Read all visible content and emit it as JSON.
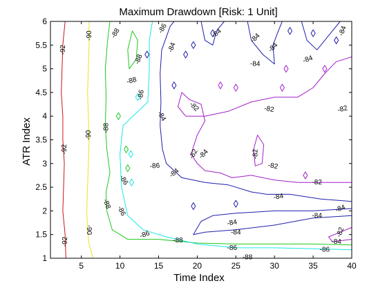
{
  "chart_data": {
    "type": "contour",
    "title": "Maximum Drawdown [Risk: 1 Unit]",
    "xlabel": "Time Index",
    "ylabel": "ATR Index",
    "xlim": [
      1,
      40
    ],
    "ylim": [
      1,
      6
    ],
    "xticks": [
      "5",
      "10",
      "15",
      "20",
      "25",
      "30",
      "35",
      "40"
    ],
    "yticks": [
      "1",
      "1.5",
      "2",
      "2.5",
      "3",
      "3.5",
      "4",
      "4.5",
      "5",
      "5.5",
      "6"
    ],
    "grid": false,
    "legend": "none",
    "levels": [
      {
        "level": -92,
        "color": "#c81414",
        "label": "-92",
        "points": [
          [
            3.0,
            1.0
          ],
          [
            2.9,
            1.5
          ],
          [
            2.6,
            2.0
          ],
          [
            2.7,
            2.5
          ],
          [
            2.8,
            3.0
          ],
          [
            2.6,
            3.5
          ],
          [
            2.6,
            4.0
          ],
          [
            2.4,
            4.5
          ],
          [
            2.5,
            5.0
          ],
          [
            2.6,
            5.5
          ],
          [
            2.9,
            6.0
          ]
        ]
      },
      {
        "level": -90,
        "color": "#e6e61e",
        "label": "-90",
        "points": [
          [
            6.5,
            1.0
          ],
          [
            6.0,
            1.3
          ],
          [
            5.8,
            1.6
          ],
          [
            5.7,
            2.0
          ],
          [
            5.8,
            2.5
          ],
          [
            5.9,
            3.0
          ],
          [
            6.0,
            3.5
          ],
          [
            5.9,
            4.0
          ],
          [
            5.8,
            4.5
          ],
          [
            5.9,
            5.0
          ],
          [
            6.0,
            5.5
          ],
          [
            6.0,
            6.0
          ]
        ]
      },
      {
        "level": -88,
        "color": "#1ec81e",
        "label": "-88",
        "points": [
          [
            40.0,
            1.28
          ],
          [
            35.0,
            1.3
          ],
          [
            30.0,
            1.3
          ],
          [
            25.0,
            1.3
          ],
          [
            20.0,
            1.32
          ],
          [
            15.0,
            1.4
          ],
          [
            11.0,
            1.4
          ],
          [
            9.0,
            1.6
          ],
          [
            8.3,
            2.0
          ],
          [
            8.2,
            2.4
          ],
          [
            8.7,
            2.8
          ],
          [
            8.3,
            3.3
          ],
          [
            8.1,
            3.8
          ],
          [
            8.2,
            4.4
          ],
          [
            8.1,
            5.0
          ],
          [
            8.4,
            5.6
          ],
          [
            8.7,
            6.0
          ]
        ]
      },
      {
        "level": -88,
        "color": "#1ec81e",
        "label": "-88",
        "points": [
          [
            11.2,
            5.0
          ],
          [
            11.0,
            5.4
          ],
          [
            11.6,
            5.8
          ],
          [
            12.3,
            5.6
          ],
          [
            12.1,
            5.2
          ],
          [
            11.2,
            5.0
          ]
        ]
      },
      {
        "level": -86,
        "color": "#19e6e6",
        "label": "-86",
        "points": [
          [
            40.0,
            1.18
          ],
          [
            35.0,
            1.2
          ],
          [
            30.0,
            1.22
          ],
          [
            25.0,
            1.22
          ],
          [
            20.0,
            1.3
          ],
          [
            16.0,
            1.45
          ],
          [
            13.0,
            1.6
          ],
          [
            11.0,
            1.9
          ],
          [
            10.2,
            2.5
          ],
          [
            10.0,
            3.2
          ],
          [
            10.4,
            3.8
          ],
          [
            13.6,
            4.3
          ],
          [
            13.8,
            5.0
          ],
          [
            13.8,
            5.6
          ],
          [
            14.2,
            6.0
          ]
        ]
      },
      {
        "level": -84,
        "color": "#1e1eaa",
        "label": "-84",
        "points": [
          [
            40.0,
            1.9
          ],
          [
            35.0,
            1.85
          ],
          [
            30.0,
            1.7
          ],
          [
            25.0,
            1.6
          ],
          [
            21.0,
            1.55
          ],
          [
            19.5,
            1.5
          ],
          [
            20.5,
            1.78
          ],
          [
            22.0,
            1.9
          ],
          [
            25.0,
            1.95
          ],
          [
            30.0,
            2.0
          ],
          [
            35.0,
            2.0
          ],
          [
            40.0,
            2.05
          ]
        ]
      },
      {
        "level": -84,
        "color": "#1e1eaa",
        "label": "-84",
        "points": [
          [
            40.0,
            2.2
          ],
          [
            36.0,
            2.25
          ],
          [
            32.0,
            2.35
          ],
          [
            29.0,
            2.35
          ],
          [
            27.0,
            2.4
          ],
          [
            24.0,
            2.55
          ],
          [
            21.0,
            2.6
          ],
          [
            18.0,
            2.7
          ],
          [
            16.0,
            3.0
          ],
          [
            15.5,
            3.3
          ],
          [
            15.2,
            3.8
          ],
          [
            15.3,
            4.3
          ],
          [
            15.2,
            4.9
          ],
          [
            15.4,
            5.4
          ],
          [
            16.5,
            5.9
          ],
          [
            17.0,
            6.0
          ]
        ]
      },
      {
        "level": -84,
        "color": "#1e1eaa",
        "label": "-84",
        "points": [
          [
            20.5,
            6.0
          ],
          [
            21.0,
            5.6
          ],
          [
            22.0,
            5.5
          ],
          [
            22.5,
            5.8
          ],
          [
            23.5,
            6.0
          ]
        ]
      },
      {
        "level": -84,
        "color": "#1e1eaa",
        "label": "-84",
        "points": [
          [
            26.5,
            6.0
          ],
          [
            27.0,
            5.6
          ],
          [
            28.5,
            5.3
          ],
          [
            30.0,
            5.1
          ],
          [
            29.8,
            5.5
          ],
          [
            30.5,
            5.8
          ],
          [
            31.0,
            6.0
          ]
        ]
      },
      {
        "level": -84,
        "color": "#1e1eaa",
        "label": "-84",
        "points": [
          [
            33.5,
            6.0
          ],
          [
            34.2,
            5.6
          ],
          [
            35.5,
            5.4
          ],
          [
            37.0,
            5.7
          ],
          [
            38.5,
            6.0
          ]
        ]
      },
      {
        "level": -82,
        "color": "#a01ec8",
        "label": "-82",
        "points": [
          [
            40.0,
            5.25
          ],
          [
            38.0,
            5.15
          ],
          [
            36.5,
            4.9
          ],
          [
            35.0,
            4.6
          ],
          [
            33.0,
            4.4
          ],
          [
            30.0,
            4.4
          ],
          [
            27.0,
            4.3
          ],
          [
            24.0,
            4.1
          ],
          [
            21.0,
            4.0
          ],
          [
            18.5,
            4.0
          ],
          [
            17.5,
            4.2
          ],
          [
            18.0,
            4.5
          ],
          [
            19.0,
            4.35
          ],
          [
            20.5,
            4.25
          ],
          [
            21.0,
            3.9
          ],
          [
            20.0,
            3.6
          ],
          [
            19.2,
            3.2
          ],
          [
            20.0,
            3.0
          ],
          [
            21.0,
            2.85
          ],
          [
            23.0,
            2.8
          ],
          [
            24.5,
            2.7
          ],
          [
            27.0,
            2.75
          ],
          [
            30.0,
            2.65
          ],
          [
            33.0,
            2.6
          ],
          [
            36.0,
            2.6
          ],
          [
            40.0,
            2.6
          ]
        ]
      },
      {
        "level": -82,
        "color": "#a01ec8",
        "label": "-82",
        "points": [
          [
            40.0,
            1.65
          ],
          [
            38.5,
            1.55
          ],
          [
            37.0,
            1.45
          ],
          [
            37.5,
            1.35
          ],
          [
            40.0,
            1.4
          ]
        ]
      },
      {
        "level": -82,
        "color": "#a01ec8",
        "label": "-82",
        "points": [
          [
            27.5,
            2.95
          ],
          [
            27.3,
            3.3
          ],
          [
            27.8,
            3.6
          ],
          [
            28.6,
            3.4
          ],
          [
            28.4,
            3.0
          ],
          [
            27.5,
            2.95
          ]
        ]
      }
    ],
    "contour_labels": [
      {
        "text": "-92",
        "x": 2.6,
        "y": 5.4,
        "rotate": -90
      },
      {
        "text": "-92",
        "x": 2.8,
        "y": 3.3,
        "rotate": -90
      },
      {
        "text": "-92",
        "x": 2.9,
        "y": 1.35,
        "rotate": -90
      },
      {
        "text": "-90",
        "x": 6.0,
        "y": 5.7,
        "rotate": -90
      },
      {
        "text": "-90",
        "x": 5.9,
        "y": 3.6,
        "rotate": -90
      },
      {
        "text": "-90",
        "x": 6.0,
        "y": 1.6,
        "rotate": 90
      },
      {
        "text": "-88",
        "x": 9.4,
        "y": 5.75,
        "rotate": -60
      },
      {
        "text": "-88",
        "x": 8.2,
        "y": 3.75,
        "rotate": -90
      },
      {
        "text": "-88",
        "x": 8.3,
        "y": 2.15,
        "rotate": 70
      },
      {
        "text": "-88",
        "x": 12.4,
        "y": 5.2,
        "rotate": -70
      },
      {
        "text": "-88",
        "x": 11.5,
        "y": 4.75,
        "rotate": -15
      },
      {
        "text": "-88",
        "x": 17.5,
        "y": 1.38,
        "rotate": 0
      },
      {
        "text": "-88",
        "x": 26.5,
        "y": 1.02,
        "rotate": 0
      },
      {
        "text": "-86",
        "x": 15.5,
        "y": 5.85,
        "rotate": -60
      },
      {
        "text": "-86",
        "x": 12.7,
        "y": 4.45,
        "rotate": -80
      },
      {
        "text": "-86",
        "x": 14.5,
        "y": 2.95,
        "rotate": -5
      },
      {
        "text": "-86",
        "x": 10.5,
        "y": 2.65,
        "rotate": 60
      },
      {
        "text": "-86",
        "x": 10.2,
        "y": 2.0,
        "rotate": 65
      },
      {
        "text": "-86",
        "x": 13.2,
        "y": 1.5,
        "rotate": -20
      },
      {
        "text": "-86",
        "x": 24.5,
        "y": 1.22,
        "rotate": 0
      },
      {
        "text": "-86",
        "x": 36.5,
        "y": 1.18,
        "rotate": 0
      },
      {
        "text": "-84",
        "x": 16.7,
        "y": 5.45,
        "rotate": -70
      },
      {
        "text": "-84",
        "x": 22.5,
        "y": 5.75,
        "rotate": -40
      },
      {
        "text": "-84",
        "x": 27.5,
        "y": 5.65,
        "rotate": -45
      },
      {
        "text": "-84",
        "x": 29.8,
        "y": 5.45,
        "rotate": -45
      },
      {
        "text": "-84",
        "x": 27.5,
        "y": 5.1,
        "rotate": 0
      },
      {
        "text": "-84",
        "x": 34.3,
        "y": 5.2,
        "rotate": -20
      },
      {
        "text": "-84",
        "x": 38.8,
        "y": 5.8,
        "rotate": -70
      },
      {
        "text": "-84",
        "x": 15.4,
        "y": 4.0,
        "rotate": 60
      },
      {
        "text": "-84",
        "x": 17.0,
        "y": 2.8,
        "rotate": -40
      },
      {
        "text": "-84",
        "x": 20.8,
        "y": 3.2,
        "rotate": -45
      },
      {
        "text": "-84",
        "x": 24.5,
        "y": 1.75,
        "rotate": -10
      },
      {
        "text": "-84",
        "x": 25.0,
        "y": 1.55,
        "rotate": 0
      },
      {
        "text": "-84",
        "x": 30.5,
        "y": 2.3,
        "rotate": -10
      },
      {
        "text": "-84",
        "x": 35.5,
        "y": 1.9,
        "rotate": 0
      },
      {
        "text": "-84",
        "x": 38.5,
        "y": 2.05,
        "rotate": -20
      },
      {
        "text": "-84",
        "x": 38.0,
        "y": 1.35,
        "rotate": 0
      },
      {
        "text": "-82",
        "x": 19.6,
        "y": 4.2,
        "rotate": 45
      },
      {
        "text": "-82",
        "x": 29.3,
        "y": 4.15,
        "rotate": 10
      },
      {
        "text": "-82",
        "x": 38.8,
        "y": 4.15,
        "rotate": -15
      },
      {
        "text": "-82",
        "x": 19.5,
        "y": 3.2,
        "rotate": -60
      },
      {
        "text": "-82",
        "x": 27.5,
        "y": 3.2,
        "rotate": -90
      },
      {
        "text": "-82",
        "x": 29.8,
        "y": 2.95,
        "rotate": 10
      },
      {
        "text": "-82",
        "x": 35.5,
        "y": 2.6,
        "rotate": 0
      },
      {
        "text": "-82",
        "x": 38.5,
        "y": 1.55,
        "rotate": -70
      }
    ],
    "speckles": [
      {
        "x": 9.8,
        "y": 4.0,
        "color": "#1ec81e"
      },
      {
        "x": 10.8,
        "y": 3.3,
        "color": "#1ec81e"
      },
      {
        "x": 11.0,
        "y": 2.9,
        "color": "#1ec81e"
      },
      {
        "x": 11.4,
        "y": 3.2,
        "color": "#19e6e6"
      },
      {
        "x": 11.5,
        "y": 2.6,
        "color": "#19e6e6"
      },
      {
        "x": 12.3,
        "y": 4.4,
        "color": "#19e6e6"
      },
      {
        "x": 13.5,
        "y": 5.3,
        "color": "#1e1eaa"
      },
      {
        "x": 19.5,
        "y": 5.5,
        "color": "#1e1eaa"
      },
      {
        "x": 17.0,
        "y": 4.65,
        "color": "#1e1eaa"
      },
      {
        "x": 22.0,
        "y": 5.75,
        "color": "#1e1eaa"
      },
      {
        "x": 32.0,
        "y": 5.8,
        "color": "#1e1eaa"
      },
      {
        "x": 35.0,
        "y": 5.75,
        "color": "#1e1eaa"
      },
      {
        "x": 38.0,
        "y": 5.6,
        "color": "#1e1eaa"
      },
      {
        "x": 18.5,
        "y": 5.3,
        "color": "#1e1eaa"
      },
      {
        "x": 23.0,
        "y": 4.65,
        "color": "#a01ec8"
      },
      {
        "x": 25.0,
        "y": 4.6,
        "color": "#a01ec8"
      },
      {
        "x": 31.0,
        "y": 4.6,
        "color": "#a01ec8"
      },
      {
        "x": 31.5,
        "y": 5.0,
        "color": "#a01ec8"
      },
      {
        "x": 36.5,
        "y": 5.0,
        "color": "#a01ec8"
      },
      {
        "x": 34.0,
        "y": 2.75,
        "color": "#a01ec8"
      },
      {
        "x": 25.0,
        "y": 2.15,
        "color": "#1e1eaa"
      },
      {
        "x": 19.5,
        "y": 2.1,
        "color": "#1e1eaa"
      }
    ]
  }
}
